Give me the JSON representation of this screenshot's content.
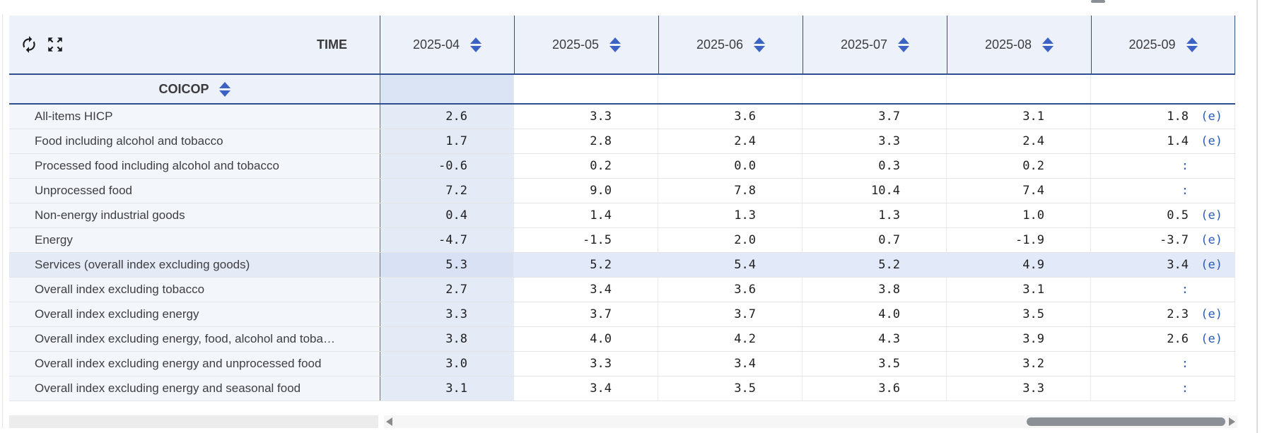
{
  "header": {
    "time_label": "TIME",
    "coicop_label": "COICOP",
    "columns": [
      "2025-04",
      "2025-05",
      "2025-06",
      "2025-07",
      "2025-08",
      "2025-09"
    ]
  },
  "icons": {
    "toolbar": [
      "swap-axes-icon",
      "expand-icon"
    ],
    "sort": "sort-icon",
    "scrollbar": [
      "scroll-left-arrow-icon",
      "scroll-right-arrow-icon"
    ]
  },
  "colors": {
    "header_bg": "#edf1f9",
    "navy_border": "#2f4e8d",
    "sort_blue": "#3c63c4",
    "flag_blue": "#2a5db0",
    "selected_column_bg": "#e4eaf6",
    "highlight_row_bg": "#e2e9f8",
    "label_cell_bg": "#f3f6fb"
  },
  "table": {
    "rows": [
      {
        "label": "All-items HICP",
        "highlighted": false,
        "values": [
          {
            "v": "2.6"
          },
          {
            "v": "3.3"
          },
          {
            "v": "3.6"
          },
          {
            "v": "3.7"
          },
          {
            "v": "3.1"
          },
          {
            "v": "1.8",
            "flag": "(e)"
          }
        ]
      },
      {
        "label": "Food including alcohol and tobacco",
        "highlighted": false,
        "values": [
          {
            "v": "1.7"
          },
          {
            "v": "2.8"
          },
          {
            "v": "2.4"
          },
          {
            "v": "3.3"
          },
          {
            "v": "2.4"
          },
          {
            "v": "1.4",
            "flag": "(e)"
          }
        ]
      },
      {
        "label": "Processed food including alcohol and tobacco",
        "highlighted": false,
        "values": [
          {
            "v": "-0.6"
          },
          {
            "v": "0.2"
          },
          {
            "v": "0.0"
          },
          {
            "v": "0.3"
          },
          {
            "v": "0.2"
          },
          {
            "v": ":"
          }
        ]
      },
      {
        "label": "Unprocessed food",
        "highlighted": false,
        "values": [
          {
            "v": "7.2"
          },
          {
            "v": "9.0"
          },
          {
            "v": "7.8"
          },
          {
            "v": "10.4"
          },
          {
            "v": "7.4"
          },
          {
            "v": ":"
          }
        ]
      },
      {
        "label": "Non-energy industrial goods",
        "highlighted": false,
        "values": [
          {
            "v": "0.4"
          },
          {
            "v": "1.4"
          },
          {
            "v": "1.3"
          },
          {
            "v": "1.3"
          },
          {
            "v": "1.0"
          },
          {
            "v": "0.5",
            "flag": "(e)"
          }
        ]
      },
      {
        "label": "Energy",
        "highlighted": false,
        "values": [
          {
            "v": "-4.7"
          },
          {
            "v": "-1.5"
          },
          {
            "v": "2.0"
          },
          {
            "v": "0.7"
          },
          {
            "v": "-1.9"
          },
          {
            "v": "-3.7",
            "flag": "(e)"
          }
        ]
      },
      {
        "label": "Services (overall index excluding goods)",
        "highlighted": true,
        "values": [
          {
            "v": "5.3"
          },
          {
            "v": "5.2"
          },
          {
            "v": "5.4"
          },
          {
            "v": "5.2"
          },
          {
            "v": "4.9"
          },
          {
            "v": "3.4",
            "flag": "(e)"
          }
        ]
      },
      {
        "label": "Overall index excluding tobacco",
        "highlighted": false,
        "values": [
          {
            "v": "2.7"
          },
          {
            "v": "3.4"
          },
          {
            "v": "3.6"
          },
          {
            "v": "3.8"
          },
          {
            "v": "3.1"
          },
          {
            "v": ":"
          }
        ]
      },
      {
        "label": "Overall index excluding energy",
        "highlighted": false,
        "values": [
          {
            "v": "3.3"
          },
          {
            "v": "3.7"
          },
          {
            "v": "3.7"
          },
          {
            "v": "4.0"
          },
          {
            "v": "3.5"
          },
          {
            "v": "2.3",
            "flag": "(e)"
          }
        ]
      },
      {
        "label": "Overall index excluding energy, food, alcohol and toba…",
        "highlighted": false,
        "values": [
          {
            "v": "3.8"
          },
          {
            "v": "4.0"
          },
          {
            "v": "4.2"
          },
          {
            "v": "4.3"
          },
          {
            "v": "3.9"
          },
          {
            "v": "2.6",
            "flag": "(e)"
          }
        ]
      },
      {
        "label": "Overall index excluding energy and unprocessed food",
        "highlighted": false,
        "values": [
          {
            "v": "3.0"
          },
          {
            "v": "3.3"
          },
          {
            "v": "3.4"
          },
          {
            "v": "3.5"
          },
          {
            "v": "3.2"
          },
          {
            "v": ":"
          }
        ]
      },
      {
        "label": "Overall index excluding energy and seasonal food",
        "highlighted": false,
        "values": [
          {
            "v": "3.1"
          },
          {
            "v": "3.4"
          },
          {
            "v": "3.5"
          },
          {
            "v": "3.6"
          },
          {
            "v": "3.3"
          },
          {
            "v": ":"
          }
        ]
      }
    ]
  }
}
